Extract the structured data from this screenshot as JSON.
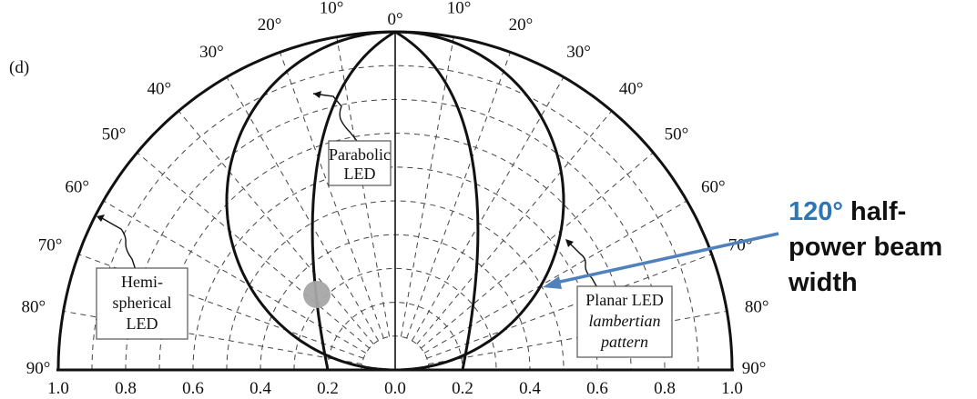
{
  "panel_label": "(d)",
  "angle_labels": [
    "0°",
    "10°",
    "20°",
    "30°",
    "40°",
    "50°",
    "60°",
    "70°",
    "80°",
    "90°"
  ],
  "radial_labels": [
    "1.0",
    "0.8",
    "0.6",
    "0.4",
    "0.2",
    "0.0",
    "0.2",
    "0.4",
    "0.6",
    "0.8",
    "1.0"
  ],
  "callouts": {
    "parabolic": [
      "Parabolic",
      "LED"
    ],
    "hemispherical": [
      "Hemi-",
      "spherical",
      "LED"
    ],
    "planar": [
      "Planar LED",
      "lambertian",
      "pattern"
    ]
  },
  "annotation": {
    "angle": "120°",
    "line1_rest": " half-",
    "line2": "power beam",
    "line3": "width",
    "angle_color": "#2E75B6",
    "arrow_color": "#4F81BD"
  },
  "marker_color": "#A6A6A6",
  "chart_data": {
    "type": "polar",
    "angle_range_deg": [
      -90,
      90
    ],
    "radius_range": [
      0,
      1.0
    ],
    "angle_ticks_deg": [
      0,
      10,
      20,
      30,
      40,
      50,
      60,
      70,
      80,
      90
    ],
    "radius_ticks": [
      0.0,
      0.2,
      0.4,
      0.6,
      0.8,
      1.0
    ],
    "grid": true,
    "series": [
      {
        "name": "Hemispherical LED",
        "pattern": "constant",
        "relative_intensity": 1.0
      },
      {
        "name": "Planar LED lambertian pattern",
        "pattern": "cos(theta)",
        "half_power_beam_width_deg": 120
      },
      {
        "name": "Parabolic LED",
        "pattern": "cos^n(theta)",
        "width_at_horizon": 0.2
      }
    ]
  }
}
